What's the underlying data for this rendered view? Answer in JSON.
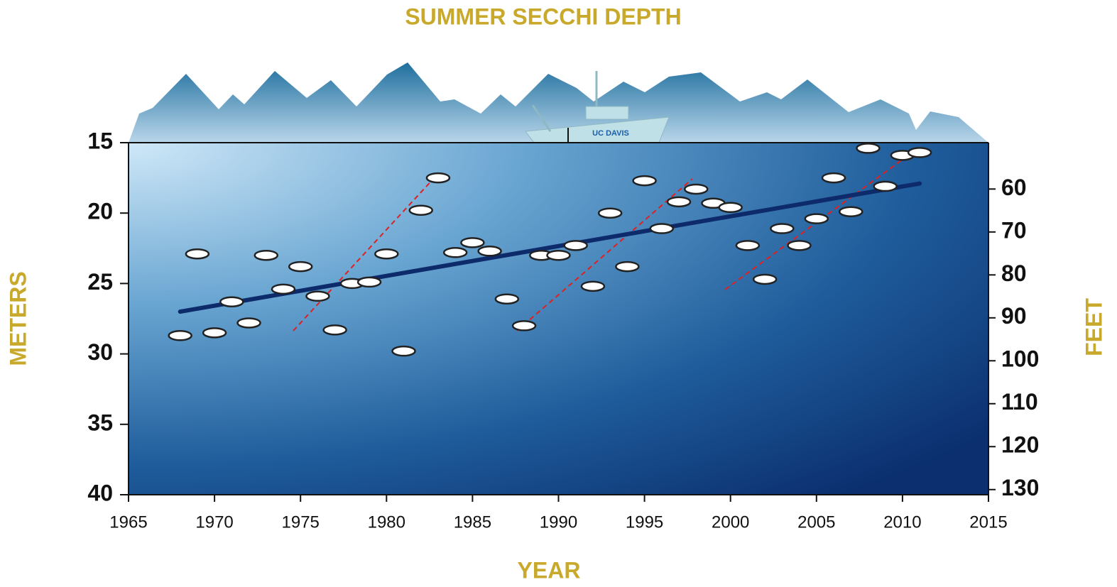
{
  "chart_data": {
    "type": "scatter",
    "title": "SUMMER SECCHI DEPTH",
    "x_label": "YEAR",
    "y_label": "METERS",
    "y2_label": "FEET",
    "boat_label": "UC DAVIS",
    "x": [
      1968,
      1969,
      1970,
      1971,
      1972,
      1973,
      1974,
      1975,
      1976,
      1977,
      1978,
      1979,
      1980,
      1981,
      1982,
      1983,
      1984,
      1985,
      1986,
      1987,
      1988,
      1989,
      1990,
      1991,
      1992,
      1993,
      1994,
      1995,
      1996,
      1997,
      1998,
      1999,
      2000,
      2001,
      2002,
      2003,
      2004,
      2005,
      2006,
      2007,
      2008,
      2009,
      2010,
      2011
    ],
    "values": [
      28.7,
      22.9,
      28.5,
      26.3,
      27.8,
      23.0,
      25.4,
      23.8,
      25.9,
      28.3,
      25.0,
      24.9,
      22.9,
      29.8,
      19.8,
      17.5,
      22.8,
      22.1,
      22.7,
      26.1,
      28.0,
      23.0,
      23.0,
      22.3,
      25.2,
      20.0,
      23.8,
      17.7,
      21.1,
      19.2,
      18.3,
      19.3,
      19.6,
      22.3,
      24.7,
      21.1,
      22.3,
      20.4,
      17.5,
      19.9,
      15.4,
      18.1,
      15.9,
      15.7
    ],
    "color": "#ffffff",
    "trend": {
      "x": [
        1968,
        2011
      ],
      "values": [
        27.0,
        17.9
      ],
      "color": "#0d2a6b"
    },
    "xlim": [
      1965,
      2015
    ],
    "xticks": [
      1965,
      1970,
      1975,
      1980,
      1985,
      1990,
      1995,
      2000,
      2005,
      2010,
      2015
    ],
    "ylim": [
      40,
      15
    ],
    "yticks": [
      15,
      20,
      25,
      30,
      35,
      40
    ],
    "y2lim": [
      131.2,
      49.2
    ],
    "y2ticks": [
      60,
      70,
      80,
      90,
      100,
      110,
      120,
      130
    ]
  }
}
